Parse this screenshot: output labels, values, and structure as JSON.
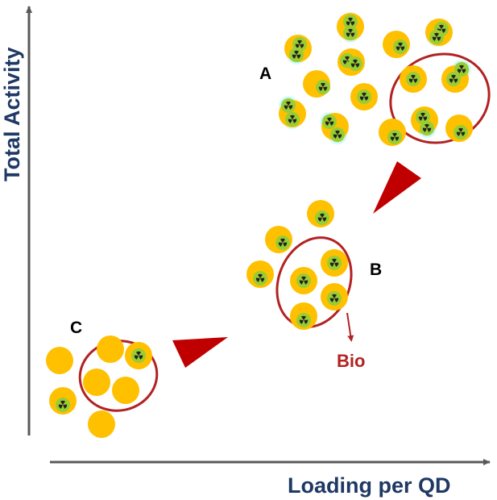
{
  "axes": {
    "x_title": "Loading per QD",
    "y_title": "Total Activity"
  },
  "clusters": {
    "a_label": "A",
    "b_label": "B",
    "c_label": "C"
  },
  "annotation": {
    "bio_label": "Bio"
  },
  "colors": {
    "axis": "#595959",
    "axis_title": "#1f3864",
    "qd_core": "#ffc000",
    "qd_glow": "#8ef0e6",
    "ligand_disk": "#9acd32",
    "radiation_symbol": "#222222",
    "ellipse": "#b22222",
    "arrowhead": "#c00000",
    "bio_text": "#b22222",
    "label_text": "#000000"
  },
  "icons": {
    "quantum_dot": "quantum-dot-icon",
    "radiolabel": "radiation-trefoil-icon",
    "progression_arrow": "triangle-arrowhead-icon"
  }
}
